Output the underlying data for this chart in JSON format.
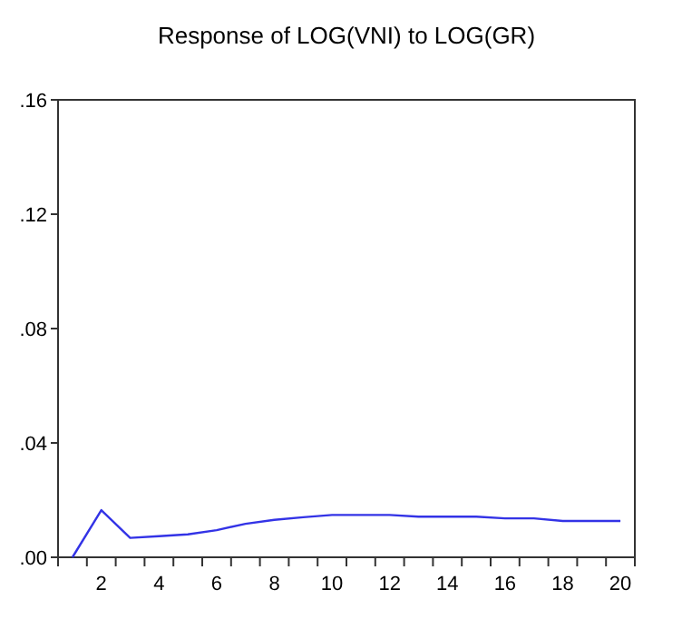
{
  "chart_data": {
    "type": "line",
    "title": "Response of LOG(VNI) to LOG(GR)",
    "categories": [
      null,
      "2",
      null,
      "4",
      null,
      "6",
      null,
      "8",
      null,
      "10",
      null,
      "12",
      null,
      "14",
      null,
      "16",
      null,
      "18",
      null,
      "20"
    ],
    "series": [
      {
        "color": "#3333e6",
        "values": [
          0,
          0.0165,
          0.0068,
          0.0074,
          0.008,
          0.0095,
          0.0117,
          0.0131,
          0.014,
          0.0148,
          0.0148,
          0.0148,
          0.0142,
          0.0142,
          0.0142,
          0.0136,
          0.0136,
          0.0127,
          0.0127,
          0.0127
        ]
      }
    ],
    "ylim": [
      0,
      0.16
    ],
    "yticks": [
      {
        "value": 0,
        "label": ".00"
      },
      {
        "value": 0.04,
        "label": ".04"
      },
      {
        "value": 0.08,
        "label": ".08"
      },
      {
        "value": 0.12,
        "label": ".12"
      },
      {
        "value": 0.16,
        "label": ".16"
      }
    ],
    "grid": false
  }
}
